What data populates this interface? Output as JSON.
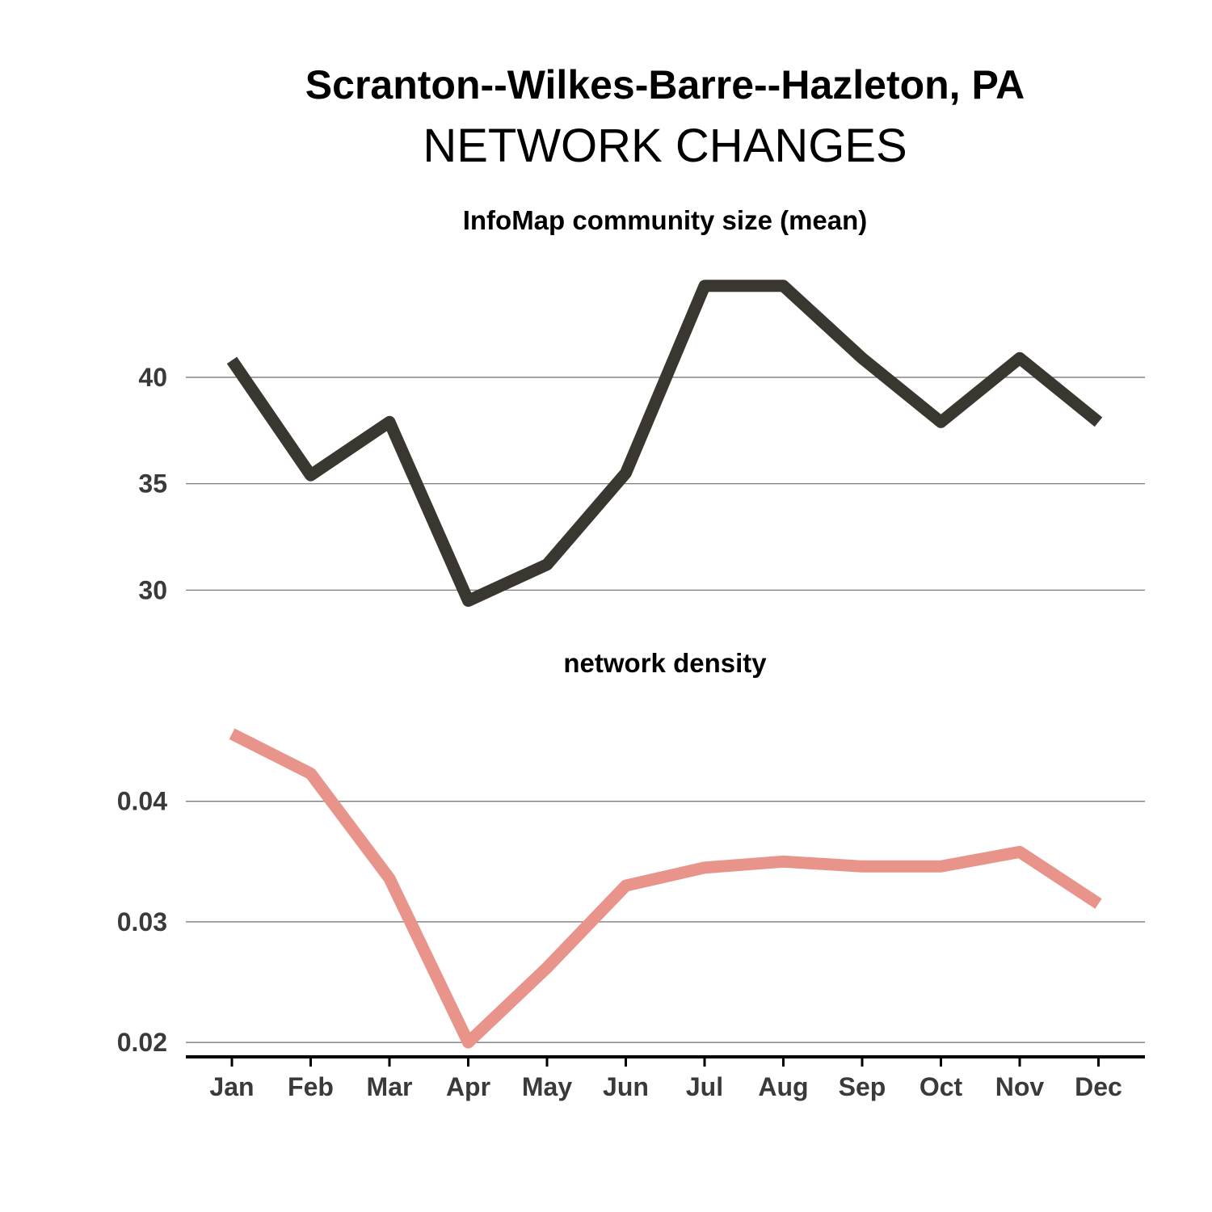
{
  "title": "Scranton--Wilkes-Barre--Hazleton, PA",
  "subtitle": "NETWORK CHANGES",
  "chart_data": [
    {
      "type": "line",
      "title": "InfoMap community size (mean)",
      "x": [
        "Jan",
        "Feb",
        "Mar",
        "Apr",
        "May",
        "Jun",
        "Jul",
        "Aug",
        "Sep",
        "Oct",
        "Nov",
        "Dec"
      ],
      "series": [
        {
          "values": [
            40.8,
            35.4,
            37.9,
            29.5,
            31.2,
            35.5,
            44.3,
            44.3,
            40.9,
            37.9,
            40.9,
            37.9
          ],
          "color": "#3a3730"
        }
      ],
      "yticks": [
        30,
        35,
        40
      ],
      "ylim": [
        28.0,
        46.0
      ],
      "grid": true
    },
    {
      "type": "line",
      "title": "network density",
      "x": [
        "Jan",
        "Feb",
        "Mar",
        "Apr",
        "May",
        "Jun",
        "Jul",
        "Aug",
        "Sep",
        "Oct",
        "Nov",
        "Dec"
      ],
      "series": [
        {
          "values": [
            0.0456,
            0.0423,
            0.0336,
            0.02,
            0.0262,
            0.033,
            0.0345,
            0.035,
            0.0346,
            0.0346,
            0.0358,
            0.0315
          ],
          "color": "#e8948a"
        }
      ],
      "yticks": [
        "0.02",
        "0.03",
        "0.04"
      ],
      "ylim": [
        0.0188,
        0.0497
      ],
      "grid": true
    }
  ]
}
